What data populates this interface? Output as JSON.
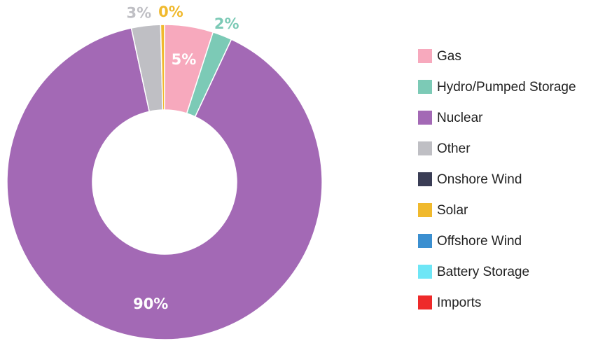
{
  "chart_data": {
    "type": "donut",
    "categories": [
      "Gas",
      "Hydro/Pumped Storage",
      "Nuclear",
      "Other",
      "Onshore Wind",
      "Solar",
      "Offshore Wind",
      "Battery Storage",
      "Imports"
    ],
    "values": [
      5,
      2,
      90,
      3,
      0,
      0.4,
      0,
      0,
      0
    ],
    "value_labels": [
      "5%",
      "2%",
      "90%",
      "3%",
      null,
      "0%",
      null,
      null,
      null
    ],
    "colors": [
      "#f7a9bd",
      "#7ccab6",
      "#a369b5",
      "#bfbfc4",
      "#3a3d55",
      "#f0b92d",
      "#3b8fd0",
      "#6ee6f6",
      "#ee2a2a"
    ],
    "legend": "right"
  }
}
